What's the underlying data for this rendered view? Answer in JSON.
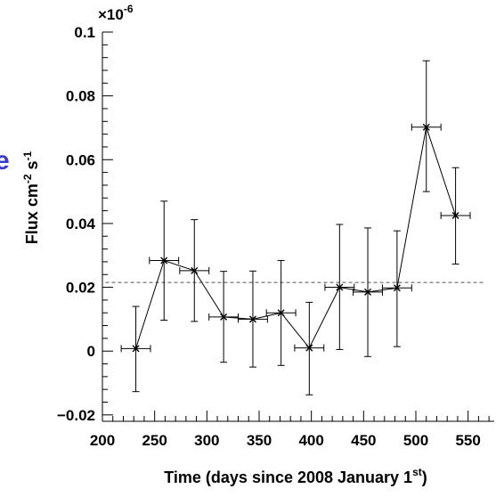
{
  "chart_data": {
    "type": "scatter",
    "title": "",
    "xlabel": {
      "prefix": "Time (days since 2008 January 1",
      "superscript": "st",
      "suffix": ")"
    },
    "ylabel": {
      "base": "Flux  cm",
      "sup1": "-2",
      "mid": " s",
      "sup2": "-1"
    },
    "y_exponent": {
      "base": "×10",
      "sup": "-6"
    },
    "xlim": [
      200,
      575
    ],
    "ylim": [
      -0.022,
      0.1
    ],
    "x_ticks": [
      200,
      250,
      300,
      350,
      400,
      450,
      500,
      550
    ],
    "y_ticks": [
      -0.02,
      0,
      0.02,
      0.04,
      0.06,
      0.08,
      0.1
    ],
    "x_tick_labels": [
      "200",
      "250",
      "300",
      "350",
      "400",
      "450",
      "500",
      "550"
    ],
    "y_tick_labels": [
      "−0.02",
      "0",
      "0.02",
      "0.04",
      "0.06",
      "0.08",
      "0.1"
    ],
    "grid": false,
    "reference_line": {
      "y": 0.0215,
      "style": "dashed",
      "x_range": [
        203,
        565
      ]
    },
    "series": [
      {
        "marker": "x",
        "connect": true,
        "color": "#000000",
        "points": [
          {
            "x": 232,
            "y": 0.0008,
            "x_err": 14,
            "y_lo": -0.0127,
            "y_hi": 0.014
          },
          {
            "x": 259,
            "y": 0.0284,
            "x_err": 14,
            "y_lo": 0.0097,
            "y_hi": 0.047
          },
          {
            "x": 288,
            "y": 0.0252,
            "x_err": 14,
            "y_lo": 0.0093,
            "y_hi": 0.0412
          },
          {
            "x": 316,
            "y": 0.0107,
            "x_err": 14,
            "y_lo": -0.0035,
            "y_hi": 0.025
          },
          {
            "x": 344,
            "y": 0.01,
            "x_err": 14,
            "y_lo": -0.005,
            "y_hi": 0.0251
          },
          {
            "x": 371,
            "y": 0.012,
            "x_err": 14,
            "y_lo": -0.0045,
            "y_hi": 0.0284
          },
          {
            "x": 398,
            "y": 0.001,
            "x_err": 14,
            "y_lo": -0.0137,
            "y_hi": 0.0153
          },
          {
            "x": 427,
            "y": 0.02,
            "x_err": 14,
            "y_lo": 0.0005,
            "y_hi": 0.0397
          },
          {
            "x": 454,
            "y": 0.0185,
            "x_err": 14,
            "y_lo": -0.0017,
            "y_hi": 0.0386
          },
          {
            "x": 482,
            "y": 0.0198,
            "x_err": 14,
            "y_lo": 0.0014,
            "y_hi": 0.0377
          },
          {
            "x": 510,
            "y": 0.0702,
            "x_err": 14,
            "y_lo": 0.05,
            "y_hi": 0.091
          },
          {
            "x": 538,
            "y": 0.0425,
            "x_err": 14,
            "y_lo": 0.0273,
            "y_hi": 0.0575
          }
        ]
      }
    ],
    "edge_glyph": "e",
    "colors": {
      "axis": "#000000",
      "data": "#000000",
      "reference": "#555555",
      "edge_glyph": "#3a3acc"
    }
  }
}
